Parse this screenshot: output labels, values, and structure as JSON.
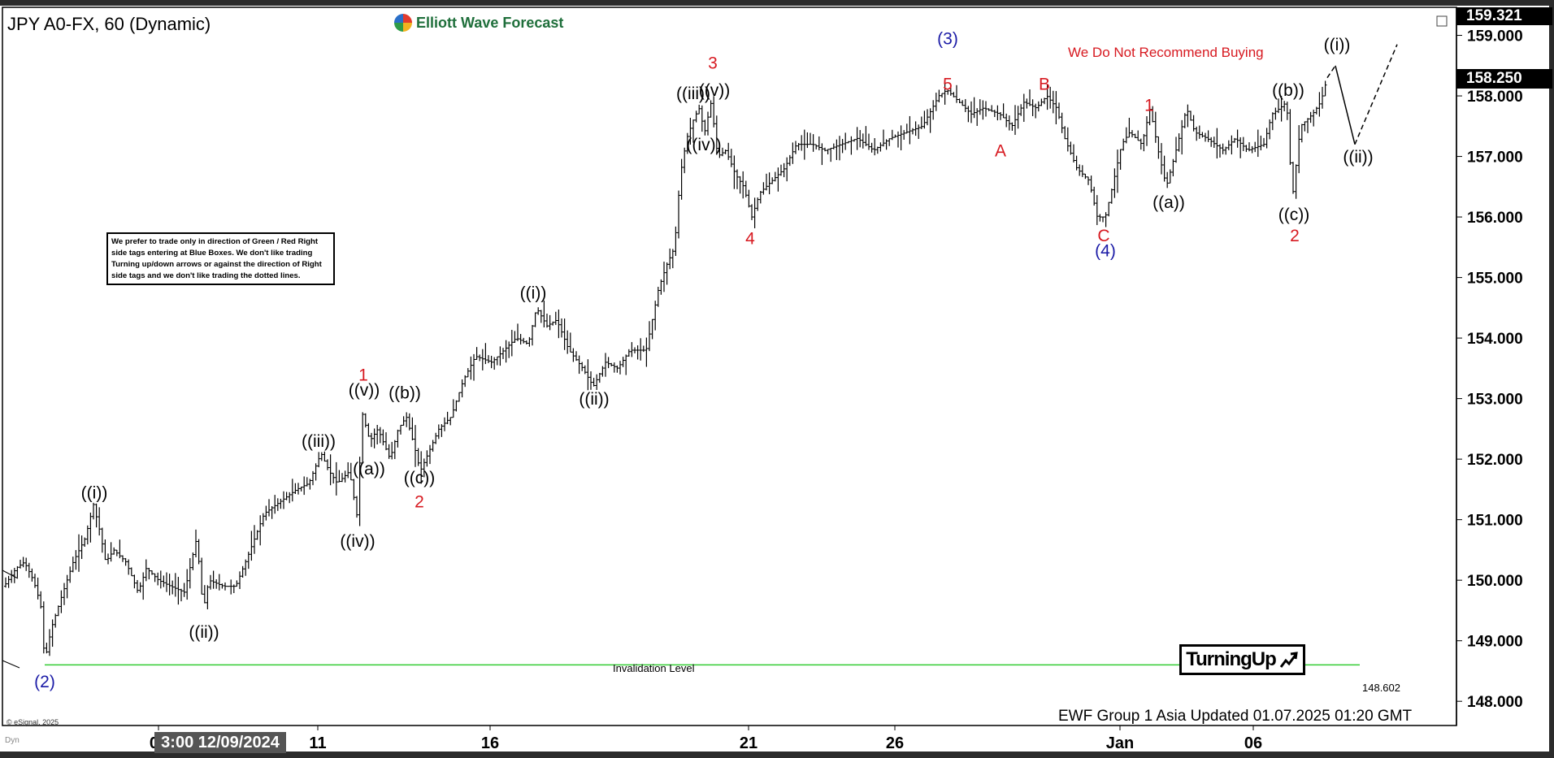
{
  "header": {
    "symbol_title": "JPY A0-FX, 60 (Dynamic)",
    "brand_name": "Elliott Wave Forecast",
    "brand_icon": "ewf-logo-icon"
  },
  "warning_text": "We Do Not Recommend Buying",
  "note_text": "We prefer to trade only in direction of Green / Red Right side tags entering at Blue Boxes. We don't like trading Turning up/down arrows or against the direction of Right side tags and we don't like trading the dotted lines.",
  "turning_badge": {
    "label": "TurningUp",
    "icon": "arrow-up-right-icon"
  },
  "invalidation": {
    "label": "Invalidation Level",
    "price_label": "148.602",
    "color": "#33cc33"
  },
  "footer": {
    "updated_text": "EWF Group 1 Asia Updated 01.07.2025 01:20 GMT",
    "copyright": "© eSignal, 2025",
    "crosshair_date": "3:00 12/09/2024",
    "corner_label": "Dyn"
  },
  "price_tags": {
    "top": "159.321",
    "last": "158.250"
  },
  "chart_data": {
    "type": "ohlc",
    "colors": {
      "bars": "#000000",
      "red_labels": "#d71920",
      "blue_labels": "#1a1aa6",
      "black_labels": "#000000",
      "invalidation": "#33cc33"
    },
    "y_range": [
      147.6,
      159.45
    ],
    "y_ticks": [
      "148.000",
      "149.000",
      "150.000",
      "151.000",
      "152.000",
      "153.000",
      "154.000",
      "155.000",
      "156.000",
      "157.000",
      "158.000",
      "159.000"
    ],
    "x_range": [
      0,
      1785
    ],
    "x_ticks": [
      {
        "x": 190,
        "label": "09"
      },
      {
        "x": 386,
        "label": "11"
      },
      {
        "x": 598,
        "label": "16"
      },
      {
        "x": 916,
        "label": "21"
      },
      {
        "x": 1096,
        "label": "26"
      },
      {
        "x": 1373,
        "label": "Jan"
      },
      {
        "x": 1537,
        "label": "06"
      }
    ],
    "price_path": [
      [
        0,
        149.9
      ],
      [
        15,
        150.2
      ],
      [
        25,
        150.3
      ],
      [
        36,
        150.0
      ],
      [
        45,
        149.6
      ],
      [
        50,
        148.65
      ],
      [
        58,
        149.2
      ],
      [
        70,
        149.7
      ],
      [
        85,
        150.3
      ],
      [
        100,
        150.7
      ],
      [
        110,
        151.25
      ],
      [
        118,
        150.8
      ],
      [
        125,
        150.3
      ],
      [
        135,
        150.5
      ],
      [
        150,
        150.3
      ],
      [
        165,
        149.8
      ],
      [
        175,
        150.2
      ],
      [
        190,
        150.0
      ],
      [
        205,
        149.9
      ],
      [
        222,
        149.8
      ],
      [
        237,
        150.7
      ],
      [
        245,
        149.5
      ],
      [
        252,
        150.0
      ],
      [
        270,
        149.9
      ],
      [
        285,
        149.9
      ],
      [
        300,
        150.4
      ],
      [
        320,
        151.1
      ],
      [
        340,
        151.3
      ],
      [
        360,
        151.5
      ],
      [
        375,
        151.6
      ],
      [
        390,
        152.1
      ],
      [
        400,
        151.8
      ],
      [
        410,
        151.6
      ],
      [
        425,
        151.8
      ],
      [
        435,
        151.0
      ],
      [
        440,
        152.8
      ],
      [
        450,
        152.3
      ],
      [
        460,
        152.5
      ],
      [
        475,
        152.0
      ],
      [
        485,
        152.5
      ],
      [
        495,
        152.7
      ],
      [
        505,
        152.2
      ],
      [
        512,
        151.8
      ],
      [
        522,
        152.1
      ],
      [
        535,
        152.5
      ],
      [
        550,
        152.7
      ],
      [
        565,
        153.3
      ],
      [
        580,
        153.7
      ],
      [
        600,
        153.6
      ],
      [
        615,
        153.8
      ],
      [
        630,
        154.0
      ],
      [
        645,
        153.9
      ],
      [
        655,
        154.5
      ],
      [
        668,
        154.2
      ],
      [
        680,
        154.3
      ],
      [
        695,
        153.8
      ],
      [
        712,
        153.5
      ],
      [
        725,
        153.2
      ],
      [
        740,
        153.6
      ],
      [
        755,
        153.5
      ],
      [
        770,
        153.8
      ],
      [
        790,
        153.8
      ],
      [
        805,
        154.8
      ],
      [
        815,
        155.2
      ],
      [
        825,
        155.5
      ],
      [
        832,
        156.7
      ],
      [
        840,
        157.3
      ],
      [
        848,
        157.6
      ],
      [
        855,
        157.8
      ],
      [
        862,
        157.4
      ],
      [
        870,
        157.9
      ],
      [
        878,
        157.0
      ],
      [
        888,
        157.1
      ],
      [
        900,
        156.7
      ],
      [
        910,
        156.5
      ],
      [
        920,
        156.0
      ],
      [
        930,
        156.4
      ],
      [
        945,
        156.6
      ],
      [
        960,
        156.8
      ],
      [
        975,
        157.2
      ],
      [
        995,
        157.2
      ],
      [
        1010,
        157.1
      ],
      [
        1030,
        157.2
      ],
      [
        1050,
        157.3
      ],
      [
        1070,
        157.1
      ],
      [
        1090,
        157.3
      ],
      [
        1110,
        157.4
      ],
      [
        1130,
        157.5
      ],
      [
        1150,
        158.0
      ],
      [
        1160,
        158.1
      ],
      [
        1175,
        157.9
      ],
      [
        1190,
        157.7
      ],
      [
        1205,
        157.8
      ],
      [
        1225,
        157.7
      ],
      [
        1240,
        157.5
      ],
      [
        1255,
        157.9
      ],
      [
        1270,
        157.8
      ],
      [
        1283,
        158.0
      ],
      [
        1295,
        157.8
      ],
      [
        1305,
        157.3
      ],
      [
        1320,
        156.8
      ],
      [
        1335,
        156.6
      ],
      [
        1345,
        156.0
      ],
      [
        1355,
        156.0
      ],
      [
        1362,
        156.4
      ],
      [
        1375,
        157.2
      ],
      [
        1385,
        157.4
      ],
      [
        1400,
        157.2
      ],
      [
        1410,
        157.8
      ],
      [
        1420,
        157.1
      ],
      [
        1430,
        156.5
      ],
      [
        1440,
        157.0
      ],
      [
        1455,
        157.8
      ],
      [
        1465,
        157.4
      ],
      [
        1480,
        157.3
      ],
      [
        1500,
        157.1
      ],
      [
        1515,
        157.3
      ],
      [
        1530,
        157.1
      ],
      [
        1550,
        157.2
      ],
      [
        1560,
        157.7
      ],
      [
        1570,
        157.8
      ],
      [
        1578,
        157.9
      ],
      [
        1585,
        156.3
      ],
      [
        1595,
        157.5
      ],
      [
        1610,
        157.7
      ],
      [
        1620,
        157.9
      ],
      [
        1628,
        158.3
      ]
    ],
    "projection": [
      [
        1628,
        158.3
      ],
      [
        1638,
        158.5
      ],
      [
        1662,
        157.2
      ],
      [
        1714,
        158.85
      ]
    ],
    "wave_labels": [
      {
        "x": 50,
        "y": 148.23,
        "text": "(2)",
        "color": "blue"
      },
      {
        "x": 111,
        "y": 151.35,
        "text": "((i))",
        "color": "black"
      },
      {
        "x": 246,
        "y": 149.05,
        "text": "((ii))",
        "color": "black"
      },
      {
        "x": 387,
        "y": 152.2,
        "text": "((iii))",
        "color": "black"
      },
      {
        "x": 435,
        "y": 150.55,
        "text": "((iv))",
        "color": "black"
      },
      {
        "x": 443,
        "y": 153.05,
        "text": "((v))",
        "color": "black"
      },
      {
        "x": 442,
        "y": 153.3,
        "text": "1",
        "color": "red"
      },
      {
        "x": 449,
        "y": 151.75,
        "text": "((a))",
        "color": "black"
      },
      {
        "x": 493,
        "y": 153.0,
        "text": "((b))",
        "color": "black"
      },
      {
        "x": 511,
        "y": 151.6,
        "text": "((c))",
        "color": "black"
      },
      {
        "x": 511,
        "y": 151.2,
        "text": "2",
        "color": "red"
      },
      {
        "x": 651,
        "y": 154.65,
        "text": "((i))",
        "color": "black"
      },
      {
        "x": 726,
        "y": 152.9,
        "text": "((ii))",
        "color": "black"
      },
      {
        "x": 848,
        "y": 157.95,
        "text": "((iii))",
        "color": "black"
      },
      {
        "x": 861,
        "y": 157.1,
        "text": "((iv))",
        "color": "black"
      },
      {
        "x": 874,
        "y": 158.0,
        "text": "((v))",
        "color": "black"
      },
      {
        "x": 872,
        "y": 158.45,
        "text": "3",
        "color": "red"
      },
      {
        "x": 918,
        "y": 155.55,
        "text": "4",
        "color": "red"
      },
      {
        "x": 1161,
        "y": 158.85,
        "text": "(3)",
        "color": "blue"
      },
      {
        "x": 1161,
        "y": 158.1,
        "text": "5",
        "color": "red"
      },
      {
        "x": 1226,
        "y": 157.0,
        "text": "A",
        "color": "red"
      },
      {
        "x": 1280,
        "y": 158.1,
        "text": "B",
        "color": "red"
      },
      {
        "x": 1353,
        "y": 155.6,
        "text": "C",
        "color": "red"
      },
      {
        "x": 1355,
        "y": 155.35,
        "text": "(4)",
        "color": "blue"
      },
      {
        "x": 1409,
        "y": 157.75,
        "text": "1",
        "color": "red"
      },
      {
        "x": 1433,
        "y": 156.15,
        "text": "((a))",
        "color": "black"
      },
      {
        "x": 1580,
        "y": 158.0,
        "text": "((b))",
        "color": "black"
      },
      {
        "x": 1587,
        "y": 155.95,
        "text": "((c))",
        "color": "black"
      },
      {
        "x": 1588,
        "y": 155.6,
        "text": "2",
        "color": "red"
      },
      {
        "x": 1640,
        "y": 158.75,
        "text": "((i))",
        "color": "black"
      },
      {
        "x": 1666,
        "y": 156.9,
        "text": "((ii))",
        "color": "black"
      }
    ],
    "invalidation_level": 148.602,
    "last_price": 158.25,
    "grid": false
  }
}
